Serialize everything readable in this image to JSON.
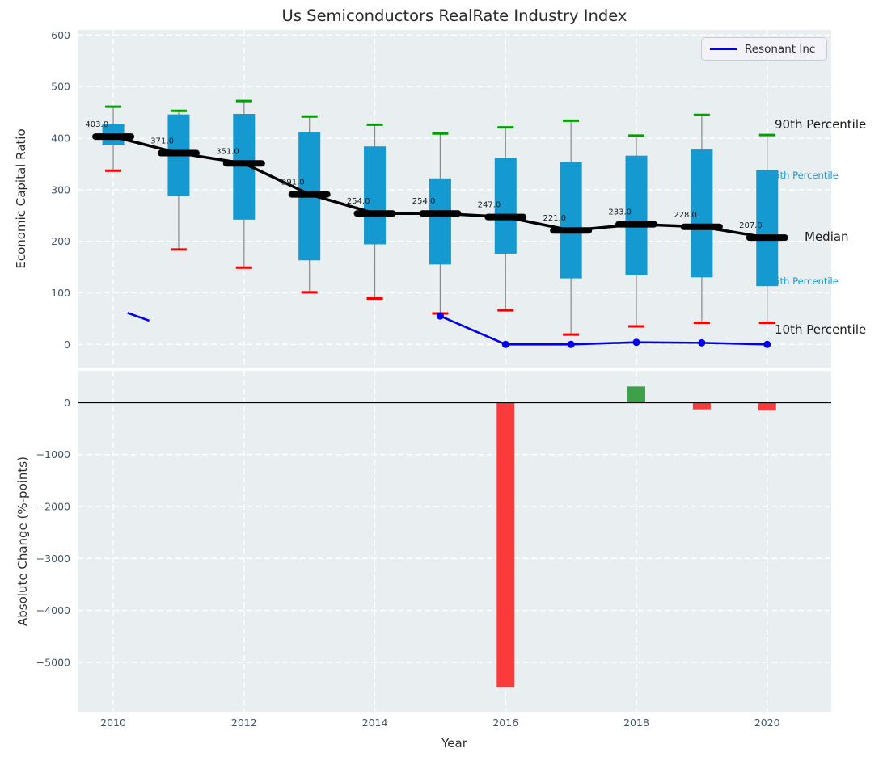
{
  "title": "Us Semiconductors RealRate Industry Index",
  "axes": {
    "top_ylabel": "Economic Capital Ratio",
    "bottom_ylabel": "Absolute Change (%-points)",
    "xlabel": "Year"
  },
  "legend": {
    "label": "Resonant Inc"
  },
  "annotations": {
    "p90": "90th Percentile",
    "p75": "75th Percentile",
    "median": "Median",
    "p25": "25th Percentile",
    "p10": "10th Percentile"
  },
  "colors": {
    "plot_bg": "#e9eef1",
    "grid": "#ffffff",
    "box": "#149ad0",
    "median": "#000000",
    "whisker": "#8a8a8a",
    "cap_high": "#00a000",
    "cap_low": "#f40000",
    "bar_negative": "#fb3b3b",
    "bar_positive": "#3fa04a",
    "line": "#0000ee",
    "tick": "#44566b",
    "text": "#1a1a1a",
    "annotation_cyan": "#149ad0",
    "zero_line": "#000000"
  },
  "chart_data": [
    {
      "type": "boxplot",
      "panel": "top",
      "title": "Us Semiconductors RealRate Industry Index",
      "ylabel": "Economic Capital Ratio",
      "ylim": [
        -45,
        610
      ],
      "yticks": [
        0,
        100,
        200,
        300,
        400,
        500,
        600
      ],
      "xticks": [
        2010,
        2012,
        2014,
        2016,
        2018,
        2020
      ],
      "grid": true,
      "years": [
        2010,
        2011,
        2012,
        2013,
        2014,
        2015,
        2016,
        2017,
        2018,
        2019,
        2020
      ],
      "p10": [
        337,
        184,
        149,
        101,
        89,
        60,
        66,
        19,
        35,
        42,
        42
      ],
      "p25": [
        386,
        288,
        242,
        163,
        194,
        155,
        176,
        128,
        134,
        130,
        113
      ],
      "median": [
        403,
        371,
        351,
        291,
        254,
        254,
        247,
        221,
        233,
        228,
        207
      ],
      "p75": [
        427,
        446,
        447,
        411,
        384,
        322,
        362,
        354,
        366,
        378,
        338
      ],
      "p90": [
        461,
        453,
        472,
        442,
        426,
        409,
        421,
        434,
        405,
        445,
        406
      ],
      "median_labels": [
        "403.0",
        "371.0",
        "351.0",
        "291.0",
        "254.0",
        "254.0",
        "247.0",
        "221.0",
        "233.0",
        "228.0",
        "207.0"
      ],
      "line_series": {
        "name": "Resonant Inc",
        "x": [
          2015,
          2016,
          2017,
          2018,
          2019,
          2020
        ],
        "y": [
          55,
          0,
          0,
          4,
          3,
          0
        ]
      },
      "line_stub": {
        "x": [
          2010.22,
          2010.55
        ],
        "y": [
          61,
          46
        ]
      },
      "legend_position": "upper right"
    },
    {
      "type": "bar",
      "panel": "bottom",
      "ylabel": "Absolute Change (%-points)",
      "xlabel": "Year",
      "ylim": [
        -5950,
        611
      ],
      "yticks": [
        0,
        -1000,
        -2000,
        -3000,
        -4000,
        -5000
      ],
      "xticks": [
        2010,
        2012,
        2014,
        2016,
        2018,
        2020
      ],
      "grid": true,
      "zero_line": true,
      "x": [
        2016,
        2018,
        2019,
        2020
      ],
      "values": [
        -5480,
        310,
        -130,
        -155
      ]
    }
  ]
}
